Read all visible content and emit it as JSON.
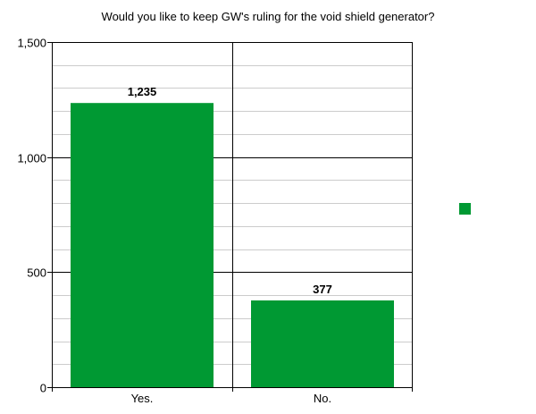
{
  "chart_data": {
    "type": "bar",
    "title": "Would you like to keep GW's ruling for the void shield generator?",
    "categories": [
      "Yes.",
      "No."
    ],
    "values": [
      1235,
      377
    ],
    "value_labels": [
      "1,235",
      "377"
    ],
    "xlabel": "",
    "ylabel": "",
    "ylim": [
      0,
      1500
    ],
    "y_major_ticks": [
      0,
      500,
      1000,
      1500
    ],
    "y_tick_labels": [
      "0",
      "500",
      "1,000",
      "1,500"
    ],
    "y_minor_step": 100,
    "grid": true,
    "legend": {
      "placement": "right",
      "entries": [
        ""
      ]
    },
    "colors": {
      "bar": "#009933",
      "minor_grid": "#cccccc",
      "major_grid": "#000000"
    }
  }
}
